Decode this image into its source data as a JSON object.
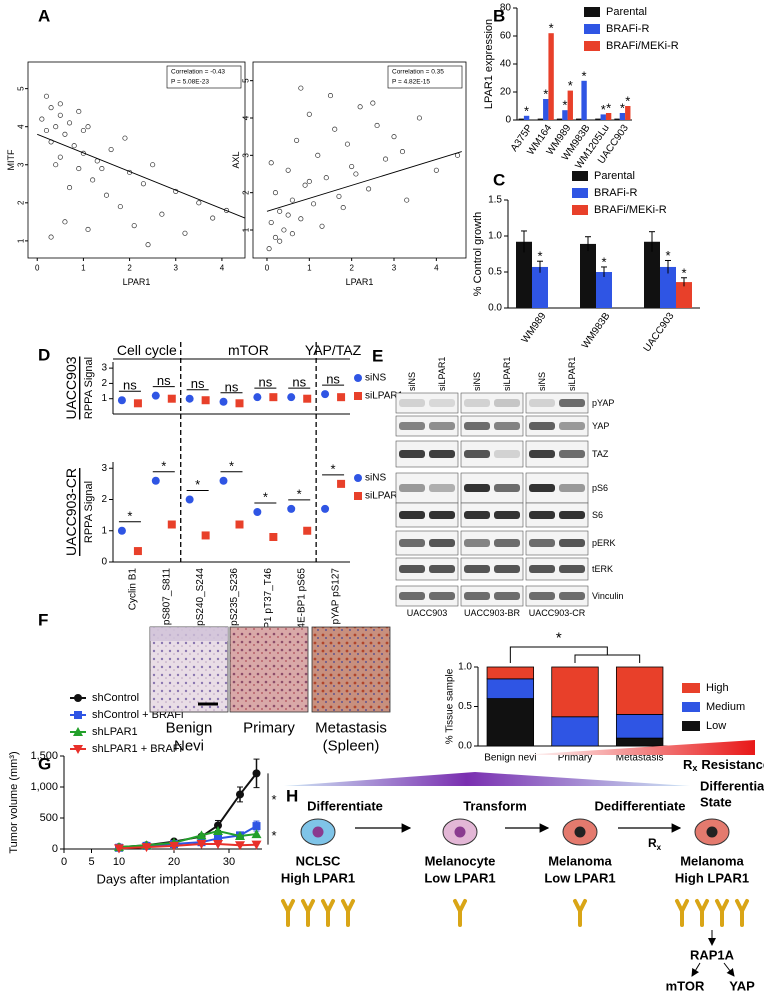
{
  "panel_labels": [
    "A",
    "B",
    "C",
    "D",
    "E",
    "F",
    "G",
    "H"
  ],
  "chart_data": [
    {
      "type": "scatter",
      "x_label": "LPAR1",
      "y_label": "MITF",
      "annotations": [
        "Correlation = -0.43",
        "P = 5.08E-23"
      ],
      "xlim": [
        -0.2,
        4.5
      ],
      "ylim": [
        0.55,
        5.7
      ],
      "xticks": [
        0,
        1,
        2,
        3,
        4
      ],
      "yticks": [
        1,
        2,
        3,
        4,
        5
      ],
      "x": [
        0.1,
        0.2,
        0.3,
        0.3,
        0.4,
        0.5,
        0.5,
        0.6,
        0.7,
        0.8,
        0.9,
        1.0,
        1.1,
        1.2,
        1.3,
        1.5,
        1.6,
        1.8,
        2.0,
        2.1,
        2.3,
        2.5,
        2.7,
        3.0,
        3.2,
        3.5,
        3.8,
        4.1,
        0.2,
        0.4,
        0.6,
        0.9,
        1.4,
        1.9,
        0.3,
        0.7,
        1.1,
        2.4,
        0.5,
        1.0
      ],
      "values": [
        4.2,
        3.9,
        4.5,
        3.6,
        4.0,
        4.3,
        3.2,
        3.8,
        4.1,
        3.5,
        2.9,
        3.3,
        4.0,
        2.6,
        3.1,
        2.2,
        3.4,
        1.9,
        2.8,
        1.4,
        2.5,
        3.0,
        1.7,
        2.3,
        1.2,
        2.0,
        1.6,
        1.8,
        4.8,
        3.0,
        1.5,
        4.4,
        2.9,
        3.7,
        1.1,
        2.4,
        1.3,
        0.9,
        4.6,
        3.9
      ],
      "fit": {
        "x": [
          0,
          4.5
        ],
        "values": [
          3.8,
          1.6
        ]
      }
    },
    {
      "type": "scatter",
      "x_label": "LPAR1",
      "y_label": "AXL",
      "annotations": [
        "Correlation = 0.35",
        "P = 4.82E-15"
      ],
      "xlim": [
        -0.33,
        4.7
      ],
      "ylim": [
        0.25,
        5.5
      ],
      "xticks": [
        0,
        1,
        2,
        3,
        4
      ],
      "yticks": [
        1,
        2,
        3,
        4,
        5
      ],
      "x": [
        0.05,
        0.1,
        0.2,
        0.2,
        0.3,
        0.4,
        0.5,
        0.6,
        0.7,
        0.8,
        0.9,
        1.0,
        1.1,
        1.2,
        1.4,
        1.5,
        1.7,
        1.9,
        2.0,
        2.2,
        2.4,
        2.6,
        2.8,
        3.0,
        3.3,
        3.6,
        4.0,
        4.5,
        0.3,
        0.5,
        0.8,
        1.0,
        1.3,
        1.6,
        2.1,
        2.5,
        0.1,
        0.6,
        1.8,
        3.2
      ],
      "values": [
        0.5,
        1.2,
        0.8,
        2.0,
        1.5,
        1.0,
        2.6,
        1.8,
        3.4,
        1.3,
        2.2,
        4.1,
        1.7,
        3.0,
        2.4,
        4.6,
        1.9,
        3.3,
        2.7,
        4.3,
        2.1,
        3.8,
        2.9,
        3.5,
        1.8,
        4.0,
        2.6,
        3.0,
        0.7,
        1.4,
        4.8,
        2.3,
        1.1,
        3.7,
        2.5,
        4.4,
        2.8,
        0.9,
        1.6,
        3.1
      ],
      "fit": {
        "x": [
          0,
          4.6
        ],
        "values": [
          1.5,
          3.1
        ]
      }
    },
    {
      "type": "bar",
      "y_label": "LPAR1 expression",
      "categories": [
        "A375P",
        "WM164",
        "WM989",
        "WM983B",
        "WM1205Lu",
        "UACC903"
      ],
      "ylim": [
        0,
        80
      ],
      "yticks": [
        0,
        20,
        40,
        60,
        80
      ],
      "series": [
        {
          "name": "Parental",
          "color": "#111111",
          "values": [
            1,
            1,
            1,
            1,
            1,
            1
          ],
          "significance": [
            null,
            null,
            null,
            null,
            null,
            null
          ]
        },
        {
          "name": "BRAFi-R",
          "color": "#2f55e4",
          "values": [
            3,
            15,
            7,
            28,
            4,
            5
          ],
          "significance": [
            "*",
            "*",
            "*",
            "*",
            "*",
            "*"
          ]
        },
        {
          "name": "BRAFi/MEKi-R",
          "color": "#e8402a",
          "values": [
            null,
            62,
            21,
            null,
            5,
            10
          ],
          "significance": [
            null,
            "*",
            "*",
            null,
            "*",
            "*"
          ]
        }
      ]
    },
    {
      "type": "bar",
      "y_label": "% Control growth",
      "categories": [
        "WM989",
        "WM983B",
        "UACC903"
      ],
      "ylim": [
        0,
        1.5
      ],
      "yticks": [
        {
          "value": 0,
          "label": "0.0"
        },
        0.5,
        {
          "value": 1,
          "label": "1.0"
        },
        1.5
      ],
      "series": [
        {
          "name": "Parental",
          "color": "#111111",
          "values": [
            0.92,
            0.89,
            0.92
          ],
          "errors": [
            0.15,
            0.1,
            0.14
          ],
          "significance": [
            null,
            null,
            null
          ]
        },
        {
          "name": "BRAFi-R",
          "color": "#2f55e4",
          "values": [
            0.57,
            0.5,
            0.57
          ],
          "errors": [
            0.08,
            0.07,
            0.09
          ],
          "significance": [
            "*",
            "*",
            "*"
          ]
        },
        {
          "name": "BRAFi/MEKi-R",
          "color": "#e8402a",
          "values": [
            null,
            null,
            0.36
          ],
          "errors": [
            null,
            null,
            0.06
          ],
          "significance": [
            null,
            null,
            "*"
          ]
        }
      ]
    },
    {
      "type": "dot",
      "categories": [
        "Cyclin B1",
        "Rb pS807_S811",
        "S6 pS240_S244",
        "S6 pS235_S236",
        "4E-BP1 pT37_T46",
        "4E-BP1 pS65",
        "pYAP pS127"
      ],
      "groups": [
        "Cell cycle",
        "mTOR",
        "YAP/TAZ"
      ],
      "rows": [
        {
          "name": "UACC903",
          "y_label": "RPPA Signal",
          "ylim": [
            0,
            3.4
          ],
          "yticks": [
            1,
            2,
            3
          ],
          "series": [
            {
              "name": "siNS",
              "color": "#2f55e4",
              "values": [
                0.9,
                1.2,
                1.0,
                0.8,
                1.1,
                1.1,
                1.3
              ]
            },
            {
              "name": "siLPAR1",
              "color": "#e8402a",
              "values": [
                0.7,
                1.0,
                0.9,
                0.7,
                1.1,
                1.0,
                1.1
              ]
            }
          ],
          "significance": [
            "ns",
            "ns",
            "ns",
            "ns",
            "ns",
            "ns",
            "ns"
          ]
        },
        {
          "name": "UACC903-CR",
          "y_label": "RPPA Signal",
          "ylim": [
            0,
            3.2
          ],
          "yticks": [
            0,
            1,
            2,
            3
          ],
          "series": [
            {
              "name": "siNS",
              "color": "#2f55e4",
              "values": [
                1.0,
                2.6,
                2.0,
                2.6,
                1.6,
                1.7,
                1.7
              ]
            },
            {
              "name": "siLPAR1",
              "color": "#e8402a",
              "values": [
                0.35,
                1.2,
                0.85,
                1.2,
                0.8,
                1.0,
                2.5
              ]
            }
          ],
          "significance": [
            "*",
            "*",
            "*",
            "*",
            "*",
            "*",
            "*"
          ]
        }
      ]
    },
    {
      "type": "stacked_bar",
      "y_label": "% Tissue sample",
      "categories": [
        "Benign nevi",
        "Primary",
        "Metastasis"
      ],
      "ylim": [
        0,
        1
      ],
      "yticks": [
        {
          "value": 0,
          "label": "0.0"
        },
        0.5,
        {
          "value": 1,
          "label": "1.0"
        }
      ],
      "series": [
        {
          "name": "Low",
          "color": "#111111",
          "values": [
            0.6,
            0,
            0.1
          ]
        },
        {
          "name": "Medium",
          "color": "#2f55e4",
          "values": [
            0.25,
            0.37,
            0.3
          ]
        },
        {
          "name": "High",
          "color": "#e8402a",
          "values": [
            0.15,
            0.63,
            0.6
          ]
        }
      ],
      "significance": "*"
    },
    {
      "type": "line",
      "x_label": "Days after implantation",
      "y_label": "Tumor volume (mm³)",
      "x": [
        10,
        15,
        20,
        25,
        28,
        32,
        35
      ],
      "xlim": [
        0,
        36
      ],
      "xticks": [
        0,
        5,
        10,
        20,
        30
      ],
      "ylim": [
        0,
        1500
      ],
      "yticks": [
        0,
        500,
        {
          "value": 1000,
          "label": "1,000"
        },
        {
          "value": 1500,
          "label": "1,500"
        }
      ],
      "series": [
        {
          "name": "shControl",
          "color": "#111111",
          "marker": "circle",
          "values": [
            30,
            60,
            120,
            200,
            380,
            880,
            1220
          ],
          "errors": [
            null,
            null,
            null,
            null,
            80,
            120,
            230
          ]
        },
        {
          "name": "shControl + BRAFi",
          "color": "#2f55e4",
          "marker": "square",
          "values": [
            20,
            50,
            80,
            110,
            170,
            220,
            370
          ],
          "errors": [
            null,
            null,
            null,
            null,
            null,
            null,
            80
          ]
        },
        {
          "name": "shLPAR1",
          "color": "#22a02a",
          "marker": "triangle",
          "values": [
            30,
            60,
            100,
            220,
            290,
            210,
            240
          ],
          "errors": [
            null,
            null,
            null,
            null,
            null,
            null,
            null
          ]
        },
        {
          "name": "shLPAR1 + BRAFi",
          "color": "#e8302a",
          "marker": "triangle-down",
          "values": [
            10,
            30,
            50,
            80,
            80,
            60,
            70
          ],
          "errors": [
            null,
            null,
            null,
            null,
            null,
            null,
            null
          ]
        }
      ],
      "significance": [
        "*",
        "*"
      ]
    }
  ],
  "blot": {
    "columns": [
      "siNS",
      "siLPAR1"
    ],
    "rows": [
      "pYAP",
      "YAP",
      "TAZ",
      "pS6",
      "S6",
      "pERK",
      "tERK",
      "Vinculin"
    ],
    "cell_lines": [
      "UACC903",
      "UACC903-BR",
      "UACC903-CR"
    ]
  },
  "histology": {
    "labels": [
      [
        "Benign",
        "Nevi"
      ],
      [
        "Primary"
      ],
      [
        "Metastasis",
        "(Spleen)"
      ]
    ]
  },
  "diagram": {
    "resistance": {
      "symbol": "R",
      "subscript": "x",
      "text": "Resistance"
    },
    "differentiation": [
      "Differentiation",
      "State"
    ],
    "steps": [
      "Differentiate",
      "Transform",
      "Dedifferentiate"
    ],
    "treatment": {
      "symbol": "R",
      "subscript": "x"
    },
    "stages": [
      {
        "name": "NCLSC",
        "color": "#3b7fc4",
        "level": "High LPAR1"
      },
      {
        "name": "Melanocyte",
        "color": "#7a3fa0",
        "level": "Low LPAR1"
      },
      {
        "name": "Melanoma",
        "color": "#e0201a",
        "level": "Low LPAR1"
      },
      {
        "name": "Melanoma",
        "color": "#e0201a",
        "level": "High LPAR1"
      }
    ],
    "pathway": [
      "RAP1A",
      "mTOR",
      "YAP"
    ]
  }
}
